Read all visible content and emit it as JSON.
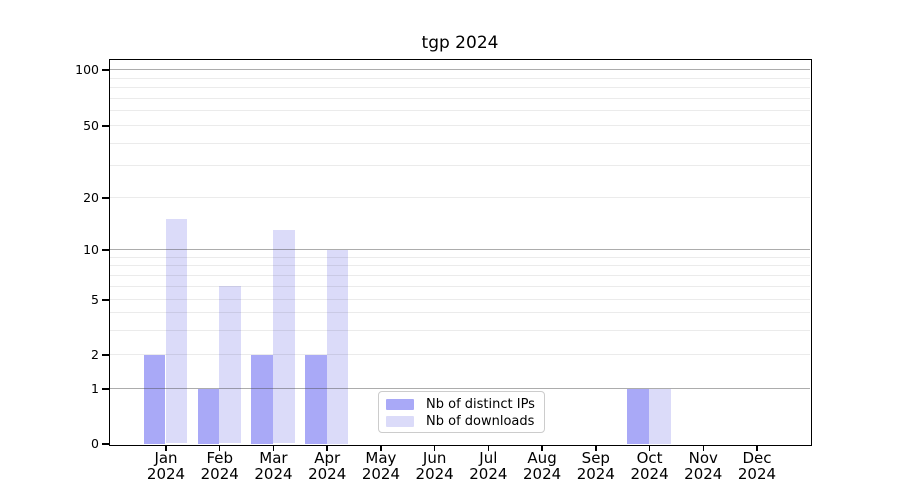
{
  "chart_data": {
    "type": "bar",
    "title": "tgp 2024",
    "yscale": "symlog-like (linear 0-1, logarithmic above 1)",
    "yticks": [
      0,
      1,
      2,
      5,
      10,
      20,
      50,
      100
    ],
    "major_gridlines": [
      1,
      10,
      100
    ],
    "minor_gridlines": [
      3,
      4,
      6,
      7,
      8,
      9,
      30,
      40,
      60,
      70,
      80,
      90
    ],
    "ylim": [
      0,
      114
    ],
    "xlabel": "",
    "ylabel": "",
    "categories": [
      "Jan",
      "Feb",
      "Mar",
      "Apr",
      "May",
      "Jun",
      "Jul",
      "Aug",
      "Sep",
      "Oct",
      "Nov",
      "Dec"
    ],
    "x_sublabel": "2024",
    "series": [
      {
        "name": "Nb of distinct IPs",
        "color": "#a9a9f7",
        "values": [
          2,
          1,
          2,
          2,
          0,
          0,
          0,
          0,
          0,
          1,
          0,
          0
        ]
      },
      {
        "name": "Nb of downloads",
        "color": "#dbdbf9",
        "values": [
          15,
          6,
          13,
          10,
          0,
          0,
          0,
          0,
          0,
          1,
          0,
          0
        ]
      }
    ],
    "legend_position": "lower center, inside plot",
    "colors": {
      "grid_major": "#acacac",
      "grid_minor": "#ebebeb",
      "spine": "#000000",
      "background": "#ffffff"
    }
  }
}
